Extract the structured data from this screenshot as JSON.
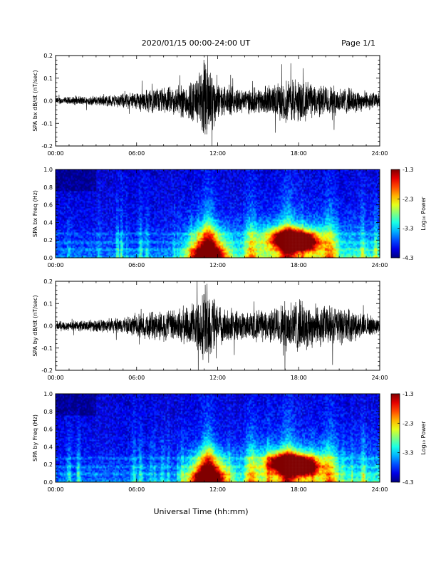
{
  "header": {
    "title": "2020/01/15  00:00-24:00 UT",
    "page": "Page 1/1"
  },
  "chart_data": [
    {
      "type": "line",
      "ylabel": "SPA bx dB/dt (nT/sec)",
      "xlim": [
        0,
        24
      ],
      "ylim": [
        -0.2,
        0.2
      ],
      "xticks": [
        "00:00",
        "06:00",
        "12:00",
        "18:00",
        "24:00"
      ],
      "yticks": [
        "-0.2",
        "-0.1",
        "0.0",
        "0.1",
        "0.2"
      ],
      "activity_envelope": [
        {
          "t": 0,
          "amp": 0.015
        },
        {
          "t": 3,
          "amp": 0.02
        },
        {
          "t": 5,
          "amp": 0.03
        },
        {
          "t": 7,
          "amp": 0.05
        },
        {
          "t": 9,
          "amp": 0.06
        },
        {
          "t": 10.5,
          "amp": 0.1
        },
        {
          "t": 11.2,
          "amp": 0.2
        },
        {
          "t": 12,
          "amp": 0.07
        },
        {
          "t": 14,
          "amp": 0.05
        },
        {
          "t": 16,
          "amp": 0.06
        },
        {
          "t": 17.5,
          "amp": 0.1
        },
        {
          "t": 19,
          "amp": 0.07
        },
        {
          "t": 21,
          "amp": 0.06
        },
        {
          "t": 24,
          "amp": 0.03
        }
      ]
    },
    {
      "type": "heatmap",
      "ylabel": "SPA bx Freq (Hz)",
      "xlim": [
        0,
        24
      ],
      "ylim": [
        0,
        1.0
      ],
      "xticks": [
        "00:00",
        "06:00",
        "12:00",
        "18:00",
        "24:00"
      ],
      "yticks": [
        "0.0",
        "0.2",
        "0.4",
        "0.6",
        "0.8",
        "1.0"
      ],
      "colorbar": {
        "label": "Log₁₀ Power",
        "range": [
          -4.3,
          -1.3
        ],
        "ticks": [
          "-1.3",
          "-2.3",
          "-3.3",
          "-4.3"
        ]
      },
      "hotspots": [
        {
          "t": 11.3,
          "f": 0.02,
          "value": -1.6
        },
        {
          "t": 17.2,
          "f": 0.22,
          "value": -1.7
        },
        {
          "t": 18.3,
          "f": 0.18,
          "value": -1.8
        }
      ]
    },
    {
      "type": "line",
      "ylabel": "SPA by dB/dt (nT/sec)",
      "xlim": [
        0,
        24
      ],
      "ylim": [
        -0.2,
        0.2
      ],
      "xticks": [
        "00:00",
        "06:00",
        "12:00",
        "18:00",
        "24:00"
      ],
      "yticks": [
        "-0.2",
        "-0.1",
        "0.0",
        "0.1",
        "0.2"
      ],
      "activity_envelope": [
        {
          "t": 0,
          "amp": 0.02
        },
        {
          "t": 3,
          "amp": 0.025
        },
        {
          "t": 5,
          "amp": 0.035
        },
        {
          "t": 7,
          "amp": 0.06
        },
        {
          "t": 9,
          "amp": 0.07
        },
        {
          "t": 10.5,
          "amp": 0.1
        },
        {
          "t": 11.2,
          "amp": 0.2
        },
        {
          "t": 12,
          "amp": 0.08
        },
        {
          "t": 14,
          "amp": 0.06
        },
        {
          "t": 16,
          "amp": 0.07
        },
        {
          "t": 17.5,
          "amp": 0.12
        },
        {
          "t": 19,
          "amp": 0.09
        },
        {
          "t": 21,
          "amp": 0.08
        },
        {
          "t": 24,
          "amp": 0.03
        }
      ]
    },
    {
      "type": "heatmap",
      "ylabel": "SPA by Freq (Hz)",
      "xlim": [
        0,
        24
      ],
      "ylim": [
        0,
        1.0
      ],
      "xticks": [
        "00:00",
        "06:00",
        "12:00",
        "18:00",
        "24:00"
      ],
      "yticks": [
        "0.0",
        "0.2",
        "0.4",
        "0.6",
        "0.8",
        "1.0"
      ],
      "colorbar": {
        "label": "Log₁₀ Power",
        "range": [
          -4.3,
          -1.3
        ],
        "ticks": [
          "-1.3",
          "-2.3",
          "-3.3",
          "-4.3"
        ]
      },
      "hotspots": [
        {
          "t": 11.3,
          "f": 0.03,
          "value": -1.6
        },
        {
          "t": 17.0,
          "f": 0.22,
          "value": -1.6
        },
        {
          "t": 18.3,
          "f": 0.18,
          "value": -1.6
        }
      ]
    }
  ],
  "xlabel": "Universal Time (hh:mm)"
}
